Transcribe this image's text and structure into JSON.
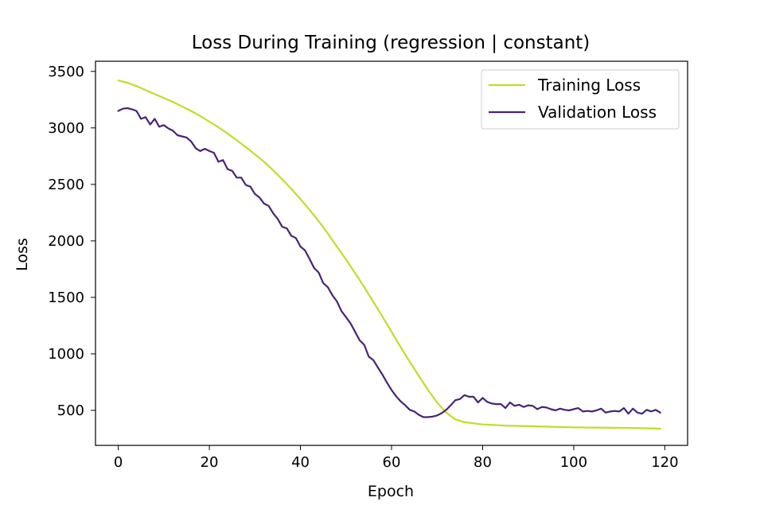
{
  "chart_data": {
    "type": "line",
    "title": "Loss During Training (regression | constant)",
    "xlabel": "Epoch",
    "ylabel": "Loss",
    "xlim": [
      -5,
      125
    ],
    "ylim": [
      190,
      3590
    ],
    "xticks": [
      0,
      20,
      40,
      60,
      80,
      100,
      120
    ],
    "yticks": [
      500,
      1000,
      1500,
      2000,
      2500,
      3000,
      3500
    ],
    "grid": false,
    "legend_position": "top-right",
    "series": [
      {
        "name": "Training Loss",
        "color": "#bcdf27",
        "x": [
          0,
          2,
          4,
          6,
          8,
          10,
          12,
          14,
          16,
          18,
          20,
          22,
          24,
          26,
          28,
          30,
          32,
          34,
          36,
          38,
          40,
          42,
          44,
          46,
          48,
          50,
          52,
          54,
          56,
          58,
          60,
          62,
          64,
          66,
          68,
          70,
          72,
          74,
          76,
          78,
          80,
          85,
          90,
          95,
          100,
          105,
          110,
          115,
          119
        ],
        "y": [
          3420,
          3400,
          3370,
          3335,
          3300,
          3265,
          3230,
          3190,
          3150,
          3105,
          3055,
          3005,
          2950,
          2890,
          2830,
          2765,
          2700,
          2625,
          2545,
          2460,
          2370,
          2275,
          2175,
          2065,
          1950,
          1835,
          1715,
          1590,
          1460,
          1330,
          1195,
          1060,
          930,
          805,
          680,
          570,
          480,
          420,
          395,
          385,
          375,
          365,
          360,
          355,
          350,
          348,
          345,
          342,
          338
        ]
      },
      {
        "name": "Validation Loss",
        "color": "#482475",
        "x": [
          0,
          1,
          2,
          3,
          4,
          5,
          6,
          7,
          8,
          9,
          10,
          11,
          12,
          13,
          14,
          15,
          16,
          17,
          18,
          19,
          20,
          21,
          22,
          23,
          24,
          25,
          26,
          27,
          28,
          29,
          30,
          31,
          32,
          33,
          34,
          35,
          36,
          37,
          38,
          39,
          40,
          41,
          42,
          43,
          44,
          45,
          46,
          47,
          48,
          49,
          50,
          51,
          52,
          53,
          54,
          55,
          56,
          57,
          58,
          59,
          60,
          61,
          62,
          63,
          64,
          65,
          66,
          67,
          68,
          69,
          70,
          71,
          72,
          73,
          74,
          75,
          76,
          77,
          78,
          79,
          80,
          81,
          82,
          83,
          84,
          85,
          86,
          87,
          88,
          89,
          90,
          91,
          92,
          93,
          94,
          95,
          96,
          97,
          98,
          99,
          100,
          101,
          102,
          103,
          104,
          105,
          106,
          107,
          108,
          109,
          110,
          111,
          112,
          113,
          114,
          115,
          116,
          117,
          118,
          119
        ],
        "y": [
          3150,
          3170,
          3175,
          3165,
          3150,
          3080,
          3095,
          3030,
          3080,
          3010,
          3025,
          2995,
          2975,
          2935,
          2925,
          2915,
          2880,
          2820,
          2795,
          2815,
          2795,
          2780,
          2700,
          2715,
          2635,
          2620,
          2560,
          2560,
          2495,
          2480,
          2415,
          2385,
          2330,
          2310,
          2245,
          2195,
          2125,
          2110,
          2045,
          2025,
          1950,
          1915,
          1840,
          1760,
          1720,
          1625,
          1590,
          1520,
          1465,
          1380,
          1325,
          1270,
          1195,
          1120,
          1080,
          975,
          945,
          880,
          815,
          745,
          680,
          625,
          580,
          545,
          505,
          490,
          460,
          440,
          440,
          445,
          455,
          475,
          505,
          545,
          590,
          600,
          635,
          620,
          620,
          570,
          610,
          575,
          560,
          555,
          555,
          520,
          570,
          540,
          550,
          530,
          545,
          540,
          510,
          530,
          525,
          510,
          500,
          515,
          505,
          500,
          510,
          520,
          490,
          495,
          490,
          500,
          515,
          480,
          490,
          495,
          490,
          520,
          470,
          515,
          480,
          470,
          505,
          490,
          505,
          480
        ]
      }
    ]
  }
}
